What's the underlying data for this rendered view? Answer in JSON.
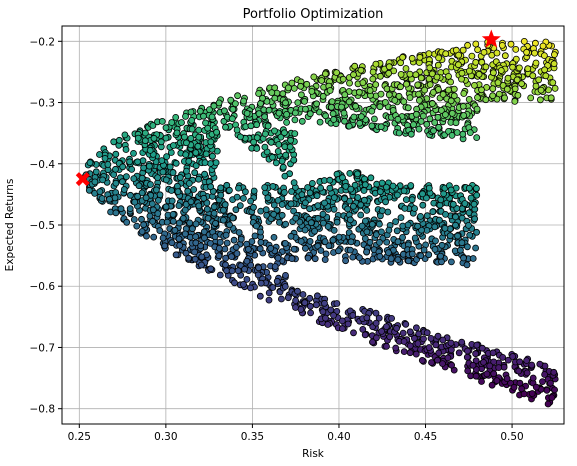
{
  "chart_data": {
    "type": "scatter",
    "title": "Portfolio Optimization",
    "xlabel": "Risk",
    "ylabel": "Expected Returns",
    "xlim": [
      0.24,
      0.53
    ],
    "ylim": [
      -0.825,
      -0.175
    ],
    "x_ticks": [
      0.25,
      0.3,
      0.35,
      0.4,
      0.45,
      0.5
    ],
    "x_tick_labels": [
      "0.25",
      "0.30",
      "0.35",
      "0.40",
      "0.45",
      "0.50"
    ],
    "y_ticks": [
      -0.2,
      -0.3,
      -0.4,
      -0.5,
      -0.6,
      -0.7,
      -0.8
    ],
    "y_tick_labels": [
      "−0.2",
      "−0.3",
      "−0.4",
      "−0.5",
      "−0.6",
      "−0.7",
      "−0.8"
    ],
    "grid": true,
    "colormap": "viridis",
    "marker_edge_color": "#000000",
    "boundary_points": [
      {
        "x": 0.252,
        "y": -0.425
      },
      {
        "x": 0.26,
        "y": -0.37
      },
      {
        "x": 0.28,
        "y": -0.32
      },
      {
        "x": 0.3,
        "y": -0.29
      },
      {
        "x": 0.33,
        "y": -0.26
      },
      {
        "x": 0.36,
        "y": -0.24
      },
      {
        "x": 0.4,
        "y": -0.22
      },
      {
        "x": 0.44,
        "y": -0.205
      },
      {
        "x": 0.48,
        "y": -0.198
      },
      {
        "x": 0.26,
        "y": -0.48
      },
      {
        "x": 0.28,
        "y": -0.53
      },
      {
        "x": 0.3,
        "y": -0.56
      },
      {
        "x": 0.33,
        "y": -0.6
      },
      {
        "x": 0.36,
        "y": -0.63
      },
      {
        "x": 0.4,
        "y": -0.67
      },
      {
        "x": 0.44,
        "y": -0.71
      },
      {
        "x": 0.48,
        "y": -0.75
      },
      {
        "x": 0.52,
        "y": -0.79
      },
      {
        "x": 0.375,
        "y": -0.435
      },
      {
        "x": 0.41,
        "y": -0.5
      },
      {
        "x": 0.44,
        "y": -0.52
      },
      {
        "x": 0.475,
        "y": -0.535
      },
      {
        "x": 0.39,
        "y": -0.56
      },
      {
        "x": 0.35,
        "y": -0.6
      }
    ],
    "highlight_points": [
      {
        "x": 0.488,
        "y": -0.197,
        "marker": "star",
        "color": "#ff0000"
      },
      {
        "x": 0.252,
        "y": -0.425,
        "marker": "X",
        "color": "#ff0000"
      }
    ]
  }
}
